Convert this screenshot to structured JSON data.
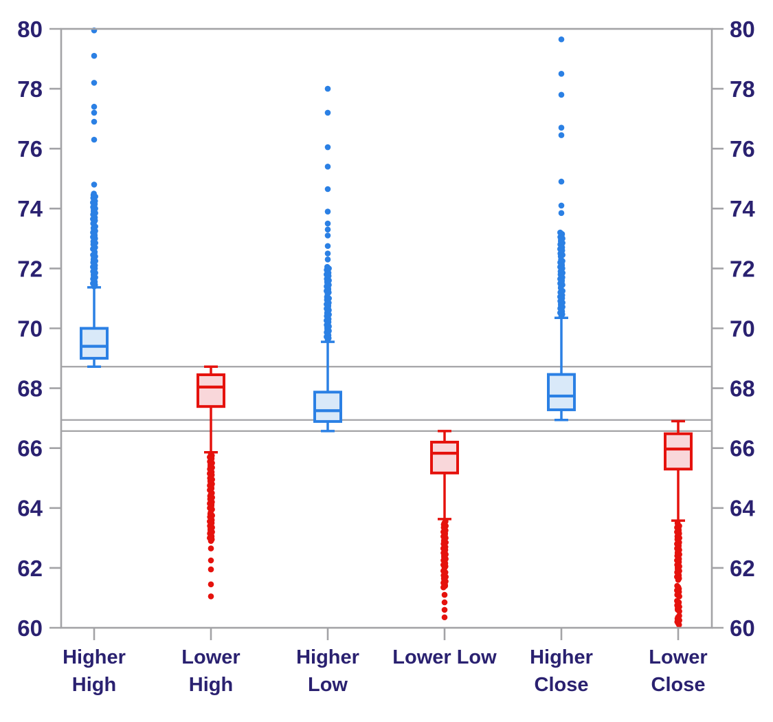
{
  "chart_data": {
    "type": "boxplot",
    "title": "",
    "xlabel": "",
    "ylabel": "",
    "y_axis": {
      "min": 60,
      "max": 80,
      "tick_step": 2,
      "ticks": [
        60,
        62,
        64,
        66,
        68,
        70,
        72,
        74,
        76,
        78,
        80
      ],
      "label_sides": [
        "left",
        "right"
      ],
      "grid": false
    },
    "reference_lines": [
      68.72,
      66.94,
      66.57
    ],
    "colors": {
      "blue_stroke": "#2B80E4",
      "blue_fill": "#D9E9F9",
      "red_stroke": "#E5120D",
      "red_fill": "#F9D7DA",
      "axis_text": "#2A2170",
      "frame_gray": "#A3A3A6"
    },
    "series": [
      {
        "name": "Higher High",
        "label_lines": [
          "Higher",
          "High"
        ],
        "color": "blue",
        "whisker_low": 68.72,
        "q1": 69.0,
        "median": 69.4,
        "q3": 70.0,
        "whisker_high": 71.37,
        "outlier_dense_ranges": [
          [
            71.4,
            72.55
          ],
          [
            72.65,
            73.4
          ],
          [
            73.5,
            74.5
          ]
        ],
        "outliers": [
          74.8,
          76.3,
          76.9,
          77.2,
          77.4,
          78.2,
          79.1,
          79.95
        ]
      },
      {
        "name": "Lower High",
        "label_lines": [
          "Lower",
          "High"
        ],
        "color": "red",
        "whisker_low": 65.86,
        "q1": 67.39,
        "median": 68.04,
        "q3": 68.45,
        "whisker_high": 68.72,
        "outlier_dense_ranges": [
          [
            62.9,
            63.85
          ],
          [
            63.95,
            64.5
          ],
          [
            64.6,
            65.8
          ]
        ],
        "outliers": [
          62.65,
          62.25,
          61.95,
          61.45,
          61.05
        ]
      },
      {
        "name": "Higher Low",
        "label_lines": [
          "Higher",
          "Low"
        ],
        "color": "blue",
        "whisker_low": 66.57,
        "q1": 66.89,
        "median": 67.25,
        "q3": 67.87,
        "whisker_high": 69.55,
        "outlier_dense_ranges": [
          [
            69.62,
            71.05
          ],
          [
            71.15,
            72.05
          ]
        ],
        "outliers": [
          72.3,
          72.5,
          72.75,
          73.1,
          73.3,
          73.5,
          73.9,
          74.65,
          75.4,
          76.05,
          77.2,
          78.0
        ]
      },
      {
        "name": "Lower Low",
        "label_lines": [
          "Lower Low"
        ],
        "color": "red",
        "whisker_low": 63.63,
        "q1": 65.17,
        "median": 65.83,
        "q3": 66.2,
        "whisker_high": 66.57,
        "outlier_dense_ranges": [
          [
            62.0,
            63.55
          ],
          [
            61.35,
            61.9
          ]
        ],
        "outliers": [
          61.1,
          60.85,
          60.6,
          60.35
        ]
      },
      {
        "name": "Higher Close",
        "label_lines": [
          "Higher",
          "Close"
        ],
        "color": "blue",
        "whisker_low": 66.94,
        "q1": 67.28,
        "median": 67.74,
        "q3": 68.46,
        "whisker_high": 70.35,
        "outlier_dense_ranges": [
          [
            70.42,
            71.25
          ],
          [
            71.35,
            72.3
          ],
          [
            72.4,
            73.2
          ]
        ],
        "outliers": [
          73.85,
          74.1,
          74.9,
          76.45,
          76.7,
          77.8,
          78.5,
          79.65
        ]
      },
      {
        "name": "Lower Close",
        "label_lines": [
          "Lower",
          "Close"
        ],
        "color": "red",
        "whisker_low": 63.58,
        "q1": 65.3,
        "median": 65.97,
        "q3": 66.48,
        "whisker_high": 66.9,
        "outlier_dense_ranges": [
          [
            61.6,
            63.5
          ],
          [
            61.05,
            61.4
          ],
          [
            60.55,
            60.9
          ],
          [
            60.1,
            60.4
          ]
        ],
        "outliers": []
      }
    ]
  }
}
